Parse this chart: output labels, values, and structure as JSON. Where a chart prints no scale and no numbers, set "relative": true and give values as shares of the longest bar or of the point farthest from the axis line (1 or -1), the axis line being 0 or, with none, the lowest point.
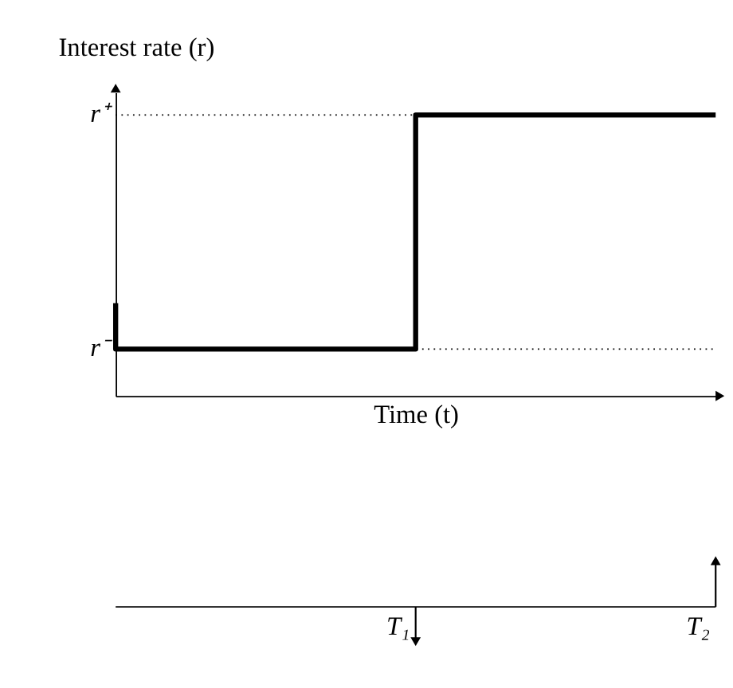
{
  "chart_data": [
    {
      "type": "step",
      "ylabel": "Interest rate (r)",
      "xlabel": "Time (t)",
      "relative": true,
      "categories": [
        null,
        null,
        null
      ],
      "values": [
        0.33,
        0.167,
        1
      ],
      "color": "#000000",
      "grid": false,
      "ref_lines": [
        {
          "axis": "y",
          "value": 1,
          "label": "r⁺",
          "line_style": "dotted",
          "color": "#000000"
        },
        {
          "axis": "y",
          "value": 0.167,
          "label": "r⁻",
          "line_style": "dotted",
          "color": "#000000"
        }
      ]
    },
    {
      "type": "other",
      "annotations": [
        "T₁",
        "T₂"
      ]
    }
  ]
}
